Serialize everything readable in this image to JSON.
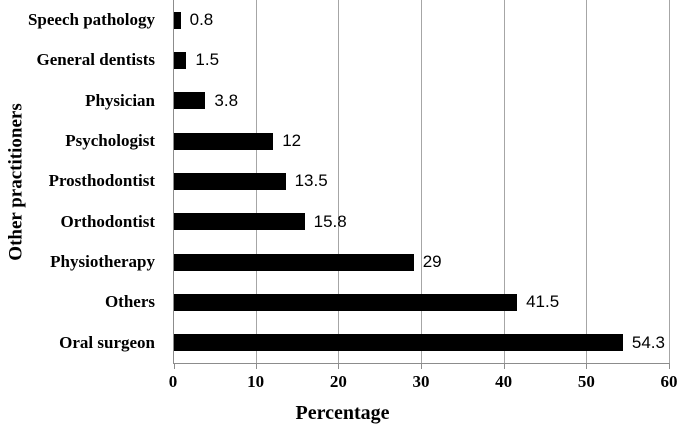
{
  "chart_data": {
    "type": "bar",
    "orientation": "horizontal",
    "categories": [
      "Speech pathology",
      "General dentists",
      "Physician",
      "Psychologist",
      "Prosthodontist",
      "Orthodontist",
      "Physiotherapy",
      "Others",
      "Oral surgeon"
    ],
    "values": [
      0.8,
      1.5,
      3.8,
      12,
      13.5,
      15.8,
      29,
      41.5,
      54.3
    ],
    "value_labels": [
      "0.8",
      "1.5",
      "3.8",
      "12",
      "13.5",
      "15.8",
      "29",
      "41.5",
      "54.3"
    ],
    "title": "",
    "xlabel": "Percentage",
    "ylabel": "Other practitioners",
    "xlim": [
      0,
      60
    ],
    "x_ticks": [
      0,
      10,
      20,
      30,
      40,
      50,
      60
    ],
    "grid": "vertical",
    "legend": "none",
    "bar_color": "#000000",
    "grid_color": "#a6a6a6",
    "axis_color": "#8c8c8c",
    "text_color": "#000000",
    "background_color": "#ffffff"
  }
}
